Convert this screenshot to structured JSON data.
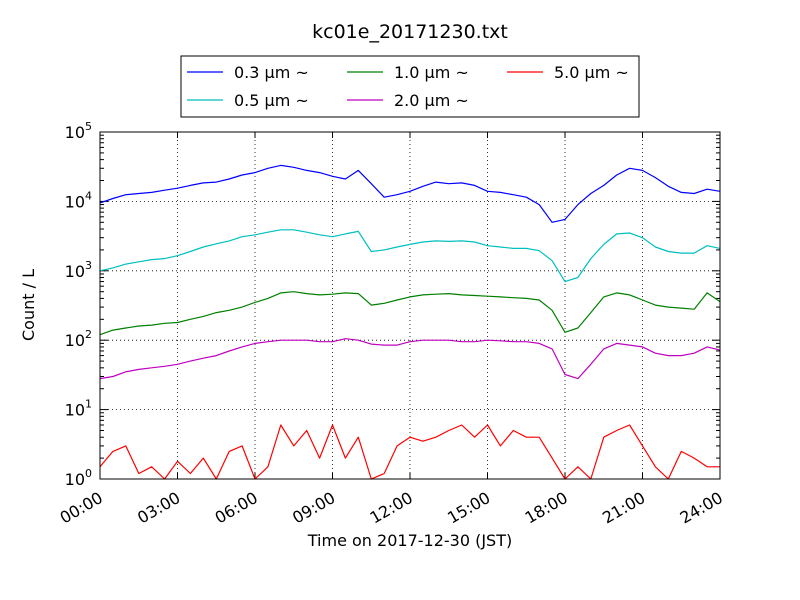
{
  "chart_data": {
    "type": "line",
    "title": "kc01e_20171230.txt",
    "xlabel": "Time on 2017-12-30 (JST)",
    "ylabel": "Count / L",
    "x_ticks": [
      "00:00",
      "03:00",
      "06:00",
      "09:00",
      "12:00",
      "15:00",
      "18:00",
      "21:00",
      "24:00"
    ],
    "x_range_hours": [
      0,
      24
    ],
    "y_scale": "log",
    "ylim": [
      1,
      100000
    ],
    "y_ticks": [
      {
        "base": "10",
        "exp": "0"
      },
      {
        "base": "10",
        "exp": "1"
      },
      {
        "base": "10",
        "exp": "2"
      },
      {
        "base": "10",
        "exp": "3"
      },
      {
        "base": "10",
        "exp": "4"
      },
      {
        "base": "10",
        "exp": "5"
      }
    ],
    "grid": true,
    "legend_position": "top-center",
    "x_hours": [
      0,
      0.5,
      1,
      1.5,
      2,
      2.5,
      3,
      3.5,
      4,
      4.5,
      5,
      5.5,
      6,
      6.5,
      7,
      7.5,
      8,
      8.5,
      9,
      9.5,
      10,
      10.5,
      11,
      11.5,
      12,
      12.5,
      13,
      13.5,
      14,
      14.5,
      15,
      15.5,
      16,
      16.5,
      17,
      17.5,
      18,
      18.5,
      19,
      19.5,
      20,
      20.5,
      21,
      21.5,
      22,
      22.5,
      23,
      23.5,
      24
    ],
    "series": [
      {
        "name": "0.3 μm ~",
        "color": "#0000ff",
        "values": [
          9500,
          11000,
          12500,
          13000,
          13500,
          14500,
          15500,
          17000,
          18500,
          19000,
          21000,
          24000,
          26000,
          30000,
          33000,
          31000,
          28000,
          26000,
          23000,
          21000,
          28000,
          18000,
          11500,
          12500,
          14000,
          16500,
          19000,
          18000,
          18500,
          17000,
          14000,
          13500,
          12500,
          11500,
          9000,
          5000,
          5500,
          9000,
          13000,
          17000,
          24000,
          30000,
          28000,
          22000,
          16500,
          13500,
          13000,
          15000,
          14000
        ]
      },
      {
        "name": "0.5 μm ~",
        "color": "#00bfbf",
        "values": [
          1000,
          1100,
          1250,
          1350,
          1450,
          1500,
          1650,
          1900,
          2200,
          2450,
          2700,
          3100,
          3300,
          3600,
          3900,
          3900,
          3600,
          3300,
          3100,
          3400,
          3700,
          1900,
          2000,
          2200,
          2400,
          2600,
          2700,
          2650,
          2700,
          2600,
          2300,
          2200,
          2100,
          2100,
          1950,
          1400,
          700,
          800,
          1500,
          2400,
          3400,
          3500,
          3000,
          2200,
          1900,
          1800,
          1800,
          2300,
          2100
        ]
      },
      {
        "name": "1.0 μm ~",
        "color": "#008000",
        "values": [
          120,
          140,
          150,
          160,
          165,
          175,
          180,
          200,
          220,
          250,
          270,
          300,
          350,
          400,
          480,
          500,
          470,
          450,
          460,
          480,
          470,
          320,
          340,
          380,
          420,
          450,
          460,
          470,
          450,
          440,
          430,
          420,
          410,
          400,
          380,
          270,
          130,
          150,
          250,
          420,
          480,
          450,
          380,
          320,
          300,
          290,
          280,
          480,
          360
        ]
      },
      {
        "name": "2.0 μm ~",
        "color": "#bf00bf",
        "values": [
          28,
          30,
          35,
          38,
          40,
          42,
          45,
          50,
          55,
          60,
          70,
          80,
          90,
          95,
          100,
          100,
          100,
          95,
          95,
          105,
          100,
          88,
          85,
          85,
          95,
          100,
          100,
          100,
          95,
          95,
          100,
          98,
          95,
          95,
          90,
          75,
          32,
          28,
          45,
          75,
          90,
          85,
          80,
          65,
          60,
          60,
          65,
          80,
          72
        ]
      },
      {
        "name": "5.0 μm ~",
        "color": "#ff0000",
        "values": [
          1.5,
          2.5,
          3,
          1.2,
          1.5,
          1,
          1.8,
          1.2,
          2,
          1,
          2.5,
          3,
          1,
          1.5,
          6,
          3,
          5,
          2,
          6,
          2,
          4,
          1,
          1.2,
          3,
          4,
          3.5,
          4,
          5,
          6,
          4,
          6,
          3,
          5,
          4,
          4,
          2,
          1,
          1.5,
          1,
          4,
          5,
          6,
          3,
          1.5,
          1,
          2.5,
          2,
          1.5,
          1.5
        ]
      }
    ]
  }
}
